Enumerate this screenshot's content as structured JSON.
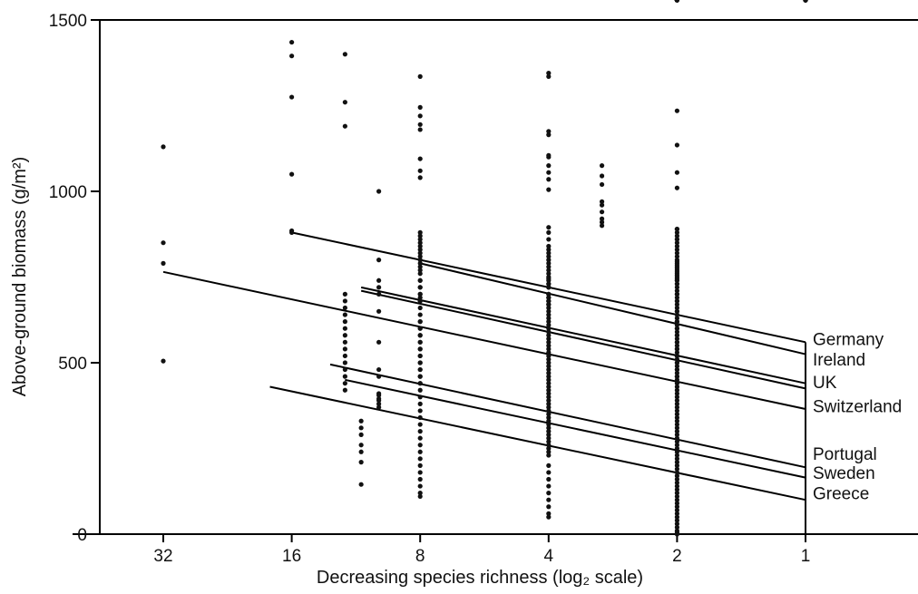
{
  "chart_data": {
    "type": "scatter",
    "title": "",
    "xlabel": "Decreasing species richness (log₂ scale)",
    "ylabel": "Above-ground biomass (g/m²)",
    "x_scale": "log2",
    "x_reversed": true,
    "xlim": [
      45,
      0.4
    ],
    "ylim": [
      0,
      1500
    ],
    "x_ticks": [
      32,
      16,
      8,
      4,
      2,
      1
    ],
    "x_tick_labels": [
      "32",
      "16",
      "8",
      "4",
      "2",
      "1"
    ],
    "y_ticks": [
      0,
      500,
      1000,
      1500
    ],
    "y_tick_labels": [
      "0",
      "500",
      "1000",
      "1500"
    ],
    "grid": false,
    "points_x": [
      32,
      32,
      32,
      32,
      16,
      16,
      16,
      16,
      16,
      16,
      11,
      11,
      11,
      11,
      11,
      11,
      11,
      10,
      10,
      10,
      10,
      10,
      10,
      10,
      10,
      10,
      10,
      10,
      10,
      10,
      10,
      10,
      8,
      8,
      8,
      8,
      8,
      8,
      8,
      8,
      8,
      8,
      8,
      8,
      8,
      8,
      8,
      8,
      8,
      8,
      8,
      8,
      8,
      8,
      8,
      8,
      8,
      8,
      8,
      8,
      8,
      8,
      8,
      8,
      8,
      8,
      8,
      8,
      8,
      8,
      8,
      8,
      8,
      8,
      8,
      8,
      8,
      8,
      8,
      8,
      8,
      8,
      8,
      8,
      8,
      8,
      8,
      8,
      8,
      8,
      8,
      8,
      8,
      8,
      8,
      8,
      8,
      8,
      8,
      8,
      8,
      12,
      12,
      12,
      12,
      12,
      12,
      12,
      12,
      12,
      12,
      12,
      12,
      12,
      12,
      12,
      12,
      12,
      12,
      4,
      4,
      4,
      4,
      4,
      4,
      4,
      4,
      4,
      4,
      4,
      4,
      4,
      4,
      4,
      4,
      4,
      4,
      4,
      4,
      4,
      4,
      4,
      4,
      4,
      4,
      4,
      4,
      4,
      4,
      4,
      4,
      4,
      4,
      4,
      4,
      4,
      4,
      4,
      4,
      4,
      4,
      4,
      4,
      4,
      4,
      4,
      4,
      4,
      4,
      4,
      4,
      4,
      4,
      4,
      4,
      4,
      4,
      4,
      4,
      4,
      4,
      4,
      4,
      4,
      4,
      4,
      4,
      4,
      4,
      4,
      4,
      4,
      4,
      4,
      4,
      4,
      4,
      4,
      4,
      4,
      4,
      4,
      4,
      4,
      4,
      4,
      4,
      4,
      4,
      3,
      3,
      3,
      3,
      3,
      3,
      3,
      3,
      3,
      2,
      2,
      2,
      2,
      2,
      2,
      2,
      2,
      2,
      2,
      2,
      2,
      2,
      2,
      2,
      2,
      2,
      2,
      2,
      2,
      2,
      2,
      2,
      2,
      2,
      2,
      2,
      2,
      2,
      2,
      2,
      2,
      2,
      2,
      2,
      2,
      2,
      2,
      2,
      2,
      2,
      2,
      2,
      2,
      2,
      2,
      2,
      2,
      2,
      2,
      2,
      2,
      2,
      2,
      2,
      2,
      2,
      2,
      2,
      2,
      2,
      2,
      2,
      2,
      2,
      2,
      2,
      2,
      2,
      2,
      2,
      2,
      2,
      2,
      2,
      2,
      2,
      2,
      2,
      2,
      2,
      2,
      2,
      2,
      2,
      2,
      2,
      2,
      2,
      2,
      2,
      2,
      2,
      2,
      2,
      2,
      2,
      2,
      2,
      2,
      2,
      2,
      2,
      2,
      2,
      2,
      2,
      2,
      2,
      2,
      2,
      2,
      2,
      2,
      2,
      2,
      2,
      2,
      2,
      2,
      2,
      2,
      2,
      2,
      2,
      2,
      2,
      2,
      2,
      2,
      2,
      2,
      2,
      2,
      2,
      2,
      2,
      2,
      2,
      2,
      2,
      2,
      2,
      2,
      2,
      2,
      2,
      2,
      2,
      2,
      2,
      2,
      2,
      2,
      2,
      2,
      2,
      2,
      2,
      1,
      1,
      1,
      1,
      1,
      1,
      1,
      1,
      1,
      1,
      1,
      1,
      1,
      1,
      1,
      1,
      1,
      1,
      1,
      1,
      1,
      1,
      1,
      1,
      1,
      1
    ],
    "points_y": [
      1130,
      850,
      790,
      505,
      1435,
      1395,
      1275,
      1050,
      885,
      880,
      330,
      310,
      290,
      260,
      240,
      210,
      145,
      1000,
      800,
      740,
      720,
      700,
      650,
      560,
      480,
      460,
      410,
      405,
      395,
      390,
      380,
      370,
      1335,
      1245,
      1220,
      1195,
      1180,
      1095,
      1060,
      880,
      870,
      860,
      850,
      840,
      830,
      820,
      810,
      800,
      790,
      780,
      770,
      700,
      680,
      660,
      640,
      620,
      600,
      580,
      560,
      540,
      520,
      500,
      480,
      460,
      440,
      420,
      400,
      380,
      360,
      340,
      320,
      300,
      280,
      260,
      240,
      220,
      200,
      180,
      160,
      140,
      120,
      110,
      760,
      740,
      720,
      700,
      690,
      680,
      620,
      600,
      580,
      560,
      540,
      520,
      500,
      480,
      460,
      440,
      1040,
      740,
      720,
      700,
      680,
      660,
      640,
      620,
      600,
      580,
      560,
      540,
      520,
      500,
      480,
      460,
      440,
      420,
      1400,
      1260,
      1190,
      1165,
      1100,
      1075,
      1055,
      1035,
      895,
      880,
      860,
      840,
      830,
      820,
      810,
      800,
      790,
      780,
      770,
      760,
      750,
      740,
      730,
      720,
      700,
      690,
      680,
      670,
      660,
      650,
      640,
      630,
      620,
      610,
      600,
      590,
      580,
      570,
      560,
      550,
      540,
      530,
      520,
      510,
      500,
      490,
      480,
      470,
      460,
      450,
      440,
      430,
      420,
      410,
      400,
      390,
      380,
      370,
      360,
      350,
      340,
      330,
      320,
      310,
      300,
      290,
      280,
      270,
      260,
      250,
      240,
      230,
      200,
      180,
      160,
      140,
      120,
      100,
      80,
      60,
      50,
      1175,
      1005,
      745,
      730,
      720,
      700,
      690,
      680,
      670,
      1345,
      1335,
      1105,
      1075,
      1045,
      1020,
      970,
      960,
      940,
      920,
      910,
      900,
      890,
      880,
      870,
      860,
      850,
      840,
      830,
      820,
      810,
      800,
      790,
      780,
      770,
      760,
      750,
      740,
      730,
      720,
      710,
      700,
      690,
      680,
      670,
      660,
      650,
      640,
      630,
      620,
      610,
      600,
      590,
      580,
      570,
      560,
      550,
      540,
      530,
      520,
      510,
      500,
      490,
      480,
      470,
      460,
      450,
      440,
      430,
      420,
      410,
      400,
      390,
      380,
      370,
      360,
      350,
      340,
      330,
      320,
      310,
      300,
      290,
      280,
      270,
      260,
      250,
      240,
      230,
      220,
      210,
      200,
      190,
      180,
      170,
      160,
      150,
      140,
      130,
      120,
      110,
      100,
      90,
      80,
      70,
      60,
      50,
      40,
      30,
      20,
      10,
      5,
      0,
      1235,
      1135,
      1055,
      1010,
      890,
      860,
      795,
      785,
      775,
      765,
      755,
      745,
      740,
      730,
      700,
      680,
      650,
      620,
      600,
      580,
      560,
      540,
      520,
      500,
      480,
      460
    ],
    "series": [
      {
        "name": "Germany",
        "x": [
          16,
          1
        ],
        "y": [
          880,
          560
        ]
      },
      {
        "name": "Ireland",
        "x": [
          8,
          1
        ],
        "y": [
          790,
          525
        ]
      },
      {
        "name": "UK",
        "x": [
          11,
          1
        ],
        "y": [
          720,
          440
        ]
      },
      {
        "name": "",
        "x": [
          11,
          1
        ],
        "y": [
          710,
          425
        ]
      },
      {
        "name": "Switzerland",
        "x": [
          32,
          1
        ],
        "y": [
          765,
          365
        ]
      },
      {
        "name": "Portugal",
        "x": [
          13,
          1
        ],
        "y": [
          495,
          195
        ]
      },
      {
        "name": "Sweden",
        "x": [
          12,
          1
        ],
        "y": [
          450,
          165
        ]
      },
      {
        "name": "Greece",
        "x": [
          18,
          1
        ],
        "y": [
          430,
          100
        ]
      }
    ],
    "series_labels": [
      "Germany",
      "Ireland",
      "UK",
      "Switzerland",
      "Portugal",
      "Sweden",
      "Greece"
    ],
    "series_label_values": [
      570,
      510,
      445,
      375,
      235,
      180,
      120
    ],
    "connector_x": 8,
    "connector_y": [
      790,
      760
    ]
  }
}
